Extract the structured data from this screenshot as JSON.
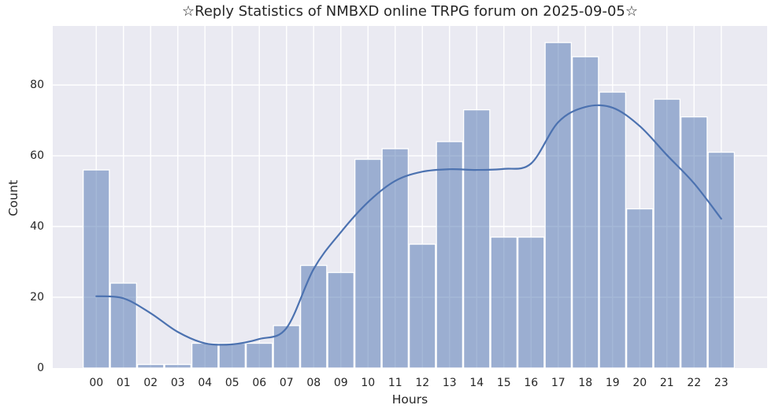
{
  "chart_data": {
    "type": "bar",
    "title": "☆Reply Statistics of NMBXD online TRPG forum on 2025-09-05☆",
    "xlabel": "Hours",
    "ylabel": "Count",
    "categories": [
      "00",
      "01",
      "02",
      "03",
      "04",
      "05",
      "06",
      "07",
      "08",
      "09",
      "10",
      "11",
      "12",
      "13",
      "14",
      "15",
      "16",
      "17",
      "18",
      "19",
      "20",
      "21",
      "22",
      "23"
    ],
    "values": [
      56,
      24,
      1,
      1,
      7,
      7,
      7,
      12,
      29,
      27,
      59,
      62,
      35,
      64,
      73,
      37,
      37,
      92,
      88,
      78,
      45,
      76,
      71,
      61
    ],
    "kde_curve": [
      20.3,
      19.7,
      15.5,
      10.2,
      7.0,
      6.7,
      8.2,
      11.3,
      28.0,
      38.4,
      46.9,
      52.9,
      55.5,
      56.2,
      56.0,
      56.3,
      57.8,
      69.5,
      73.8,
      73.6,
      68.4,
      60.2,
      52.2,
      42.2
    ],
    "yticks": [
      0,
      20,
      40,
      60,
      80
    ],
    "ylim": [
      0,
      96.7
    ],
    "grid": true,
    "legend": null,
    "colors": {
      "axes_bg": "#eaeaf2",
      "grid": "#ffffff",
      "bar_fill": "#4c72b0",
      "bar_alpha": 0.5,
      "bar_edge": "#ffffff",
      "curve": "#4c72b0",
      "text": "#262626"
    }
  }
}
